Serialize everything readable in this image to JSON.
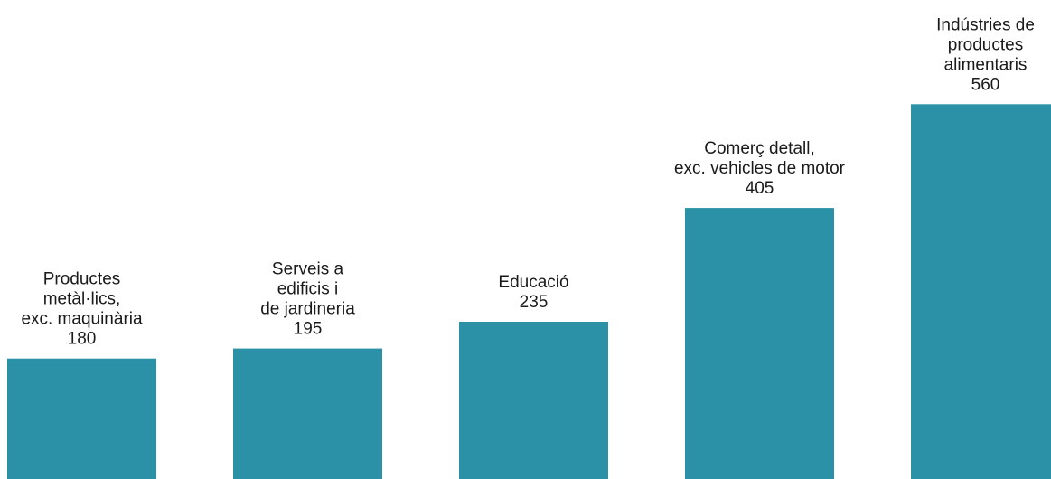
{
  "chart_data": {
    "type": "bar",
    "title": "",
    "xlabel": "",
    "ylabel": "",
    "ylim": [
      0,
      560
    ],
    "grid": false,
    "legend": "none",
    "bar_color": "#2a91a6",
    "categories": [
      "Productes metàl·lics, exc. maquinària",
      "Serveis a edificis i de jardineria",
      "Educació",
      "Comerç detall, exc. vehicles de motor",
      "Indústries de productes alimentaris"
    ],
    "category_lines": [
      [
        "Productes",
        "metàl·lics,",
        "exc. maquinària"
      ],
      [
        "Serveis a",
        "edificis i",
        "de jardineria"
      ],
      [
        "Educació"
      ],
      [
        "Comerç detall,",
        "exc. vehicles de motor"
      ],
      [
        "Indústries de",
        "productes",
        "alimentaris"
      ]
    ],
    "values": [
      180,
      195,
      235,
      405,
      560
    ],
    "value_labels": [
      "180",
      "195",
      "235",
      "405",
      "560"
    ]
  }
}
